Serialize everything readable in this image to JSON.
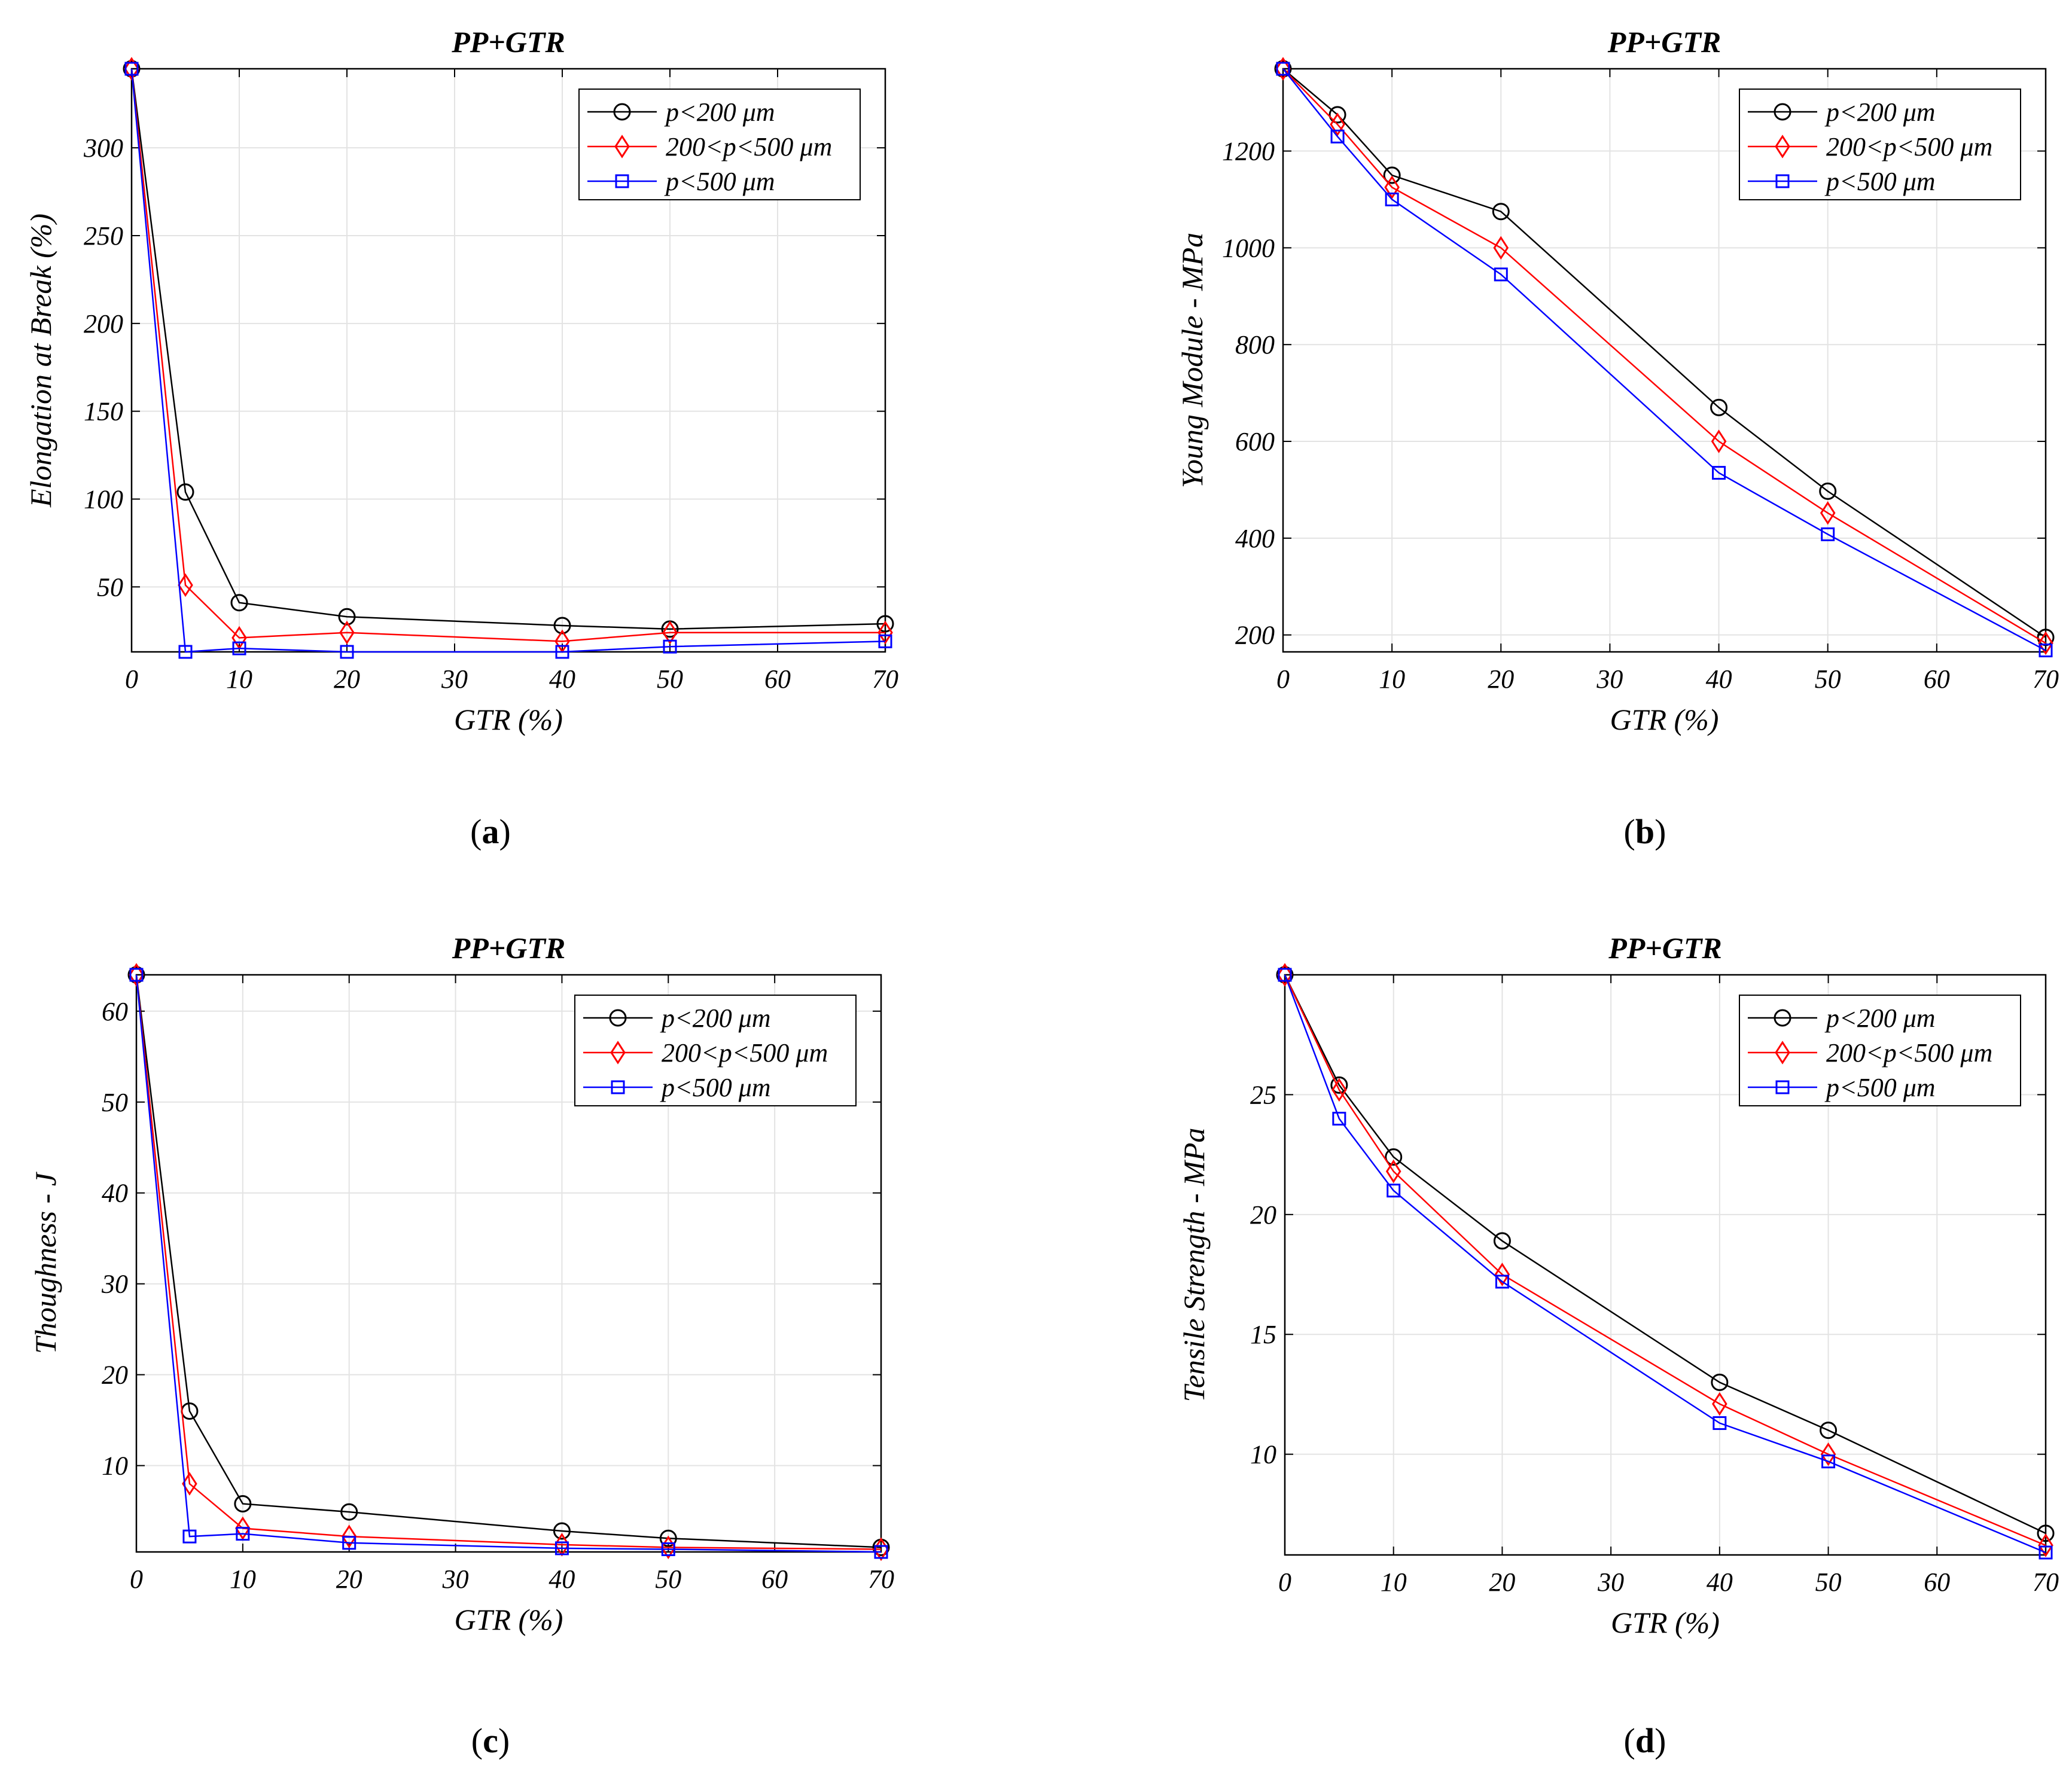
{
  "colors": {
    "series0": "#000000",
    "series1": "#ff0000",
    "series2": "#0000ff",
    "grid": "#e3e3e3"
  },
  "markers": [
    "circle",
    "diamond",
    "square"
  ],
  "chart_data": [
    {
      "type": "line",
      "title": "PP+GTR",
      "xlabel": "GTR (%)",
      "ylabel": "Elongation at Break (%)",
      "caption_label": "a",
      "x": [
        0,
        5,
        10,
        20,
        40,
        50,
        70
      ],
      "xlim": [
        0,
        70
      ],
      "xticks": [
        0,
        10,
        20,
        30,
        40,
        50,
        60,
        70
      ],
      "ylim": [
        13,
        345
      ],
      "yticks": [
        50,
        100,
        150,
        200,
        250,
        300
      ],
      "grid": true,
      "legend_position": "top-right",
      "series": [
        {
          "name": "p<200 μm",
          "values": [
            345,
            104,
            41,
            33,
            28,
            26,
            29
          ]
        },
        {
          "name": "200<p<500 μm",
          "values": [
            345,
            51,
            21,
            24,
            19,
            24,
            24
          ]
        },
        {
          "name": "p<500 μm",
          "values": [
            345,
            13,
            15,
            13,
            13,
            16,
            19
          ]
        }
      ]
    },
    {
      "type": "line",
      "title": "PP+GTR",
      "xlabel": "GTR (%)",
      "ylabel": "Young Module - MPa",
      "caption_label": "b",
      "x": [
        0,
        5,
        10,
        20,
        40,
        50,
        70
      ],
      "xlim": [
        0,
        70
      ],
      "xticks": [
        0,
        10,
        20,
        30,
        40,
        50,
        60,
        70
      ],
      "ylim": [
        165,
        1370
      ],
      "yticks": [
        200,
        400,
        600,
        800,
        1000,
        1200
      ],
      "grid": true,
      "legend_position": "top-right",
      "series": [
        {
          "name": "p<200 μm",
          "values": [
            1370,
            1275,
            1150,
            1075,
            670,
            497,
            195
          ]
        },
        {
          "name": "200<p<500 μm",
          "values": [
            1370,
            1255,
            1125,
            1000,
            600,
            452,
            183
          ]
        },
        {
          "name": "p<500 μm",
          "values": [
            1370,
            1230,
            1100,
            945,
            535,
            408,
            168
          ]
        }
      ]
    },
    {
      "type": "line",
      "title": "PP+GTR",
      "xlabel": "GTR (%)",
      "ylabel": "Thoughness - J",
      "caption_label": "c",
      "x": [
        0,
        5,
        10,
        20,
        40,
        50,
        70
      ],
      "xlim": [
        0,
        70
      ],
      "xticks": [
        0,
        10,
        20,
        30,
        40,
        50,
        60,
        70
      ],
      "ylim": [
        0.5,
        64
      ],
      "yticks": [
        10,
        20,
        30,
        40,
        50,
        60
      ],
      "grid": true,
      "legend_position": "top-right",
      "series": [
        {
          "name": "p<200 μm",
          "values": [
            64,
            16,
            5.8,
            4.9,
            2.8,
            2.0,
            1.0
          ]
        },
        {
          "name": "200<p<500 μm",
          "values": [
            64,
            8,
            3.1,
            2.2,
            1.3,
            1.0,
            0.8
          ]
        },
        {
          "name": "p<500 μm",
          "values": [
            64,
            2.2,
            2.5,
            1.5,
            0.9,
            0.8,
            0.5
          ]
        }
      ]
    },
    {
      "type": "line",
      "title": "PP+GTR",
      "xlabel": "GTR (%)",
      "ylabel": "Tensile Strength - MPa",
      "caption_label": "d",
      "x": [
        0,
        5,
        10,
        20,
        40,
        50,
        70
      ],
      "xlim": [
        0,
        70
      ],
      "xticks": [
        0,
        10,
        20,
        30,
        40,
        50,
        60,
        70
      ],
      "ylim": [
        5.8,
        30
      ],
      "yticks": [
        10,
        15,
        20,
        25
      ],
      "grid": true,
      "legend_position": "top-right",
      "series": [
        {
          "name": "p<200 μm",
          "values": [
            30,
            25.4,
            22.4,
            18.9,
            13.0,
            11.0,
            6.7
          ]
        },
        {
          "name": "200<p<500 μm",
          "values": [
            30,
            25.2,
            21.8,
            17.5,
            12.1,
            10.0,
            6.2
          ]
        },
        {
          "name": "p<500 μm",
          "values": [
            30,
            24.0,
            21.0,
            17.2,
            11.3,
            9.7,
            5.9
          ]
        }
      ]
    }
  ]
}
